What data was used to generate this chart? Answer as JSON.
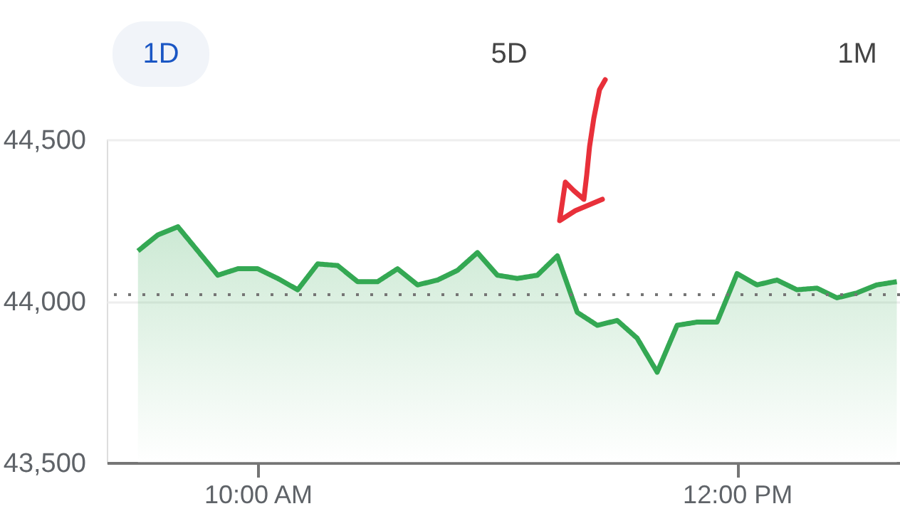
{
  "chart_data": {
    "type": "area",
    "annotations": [
      "1D",
      "5D",
      "1M"
    ],
    "x": [
      9.5,
      9.5833,
      9.6667,
      9.75,
      9.8333,
      9.9167,
      10.0,
      10.0833,
      10.1667,
      10.25,
      10.3333,
      10.4167,
      10.5,
      10.5833,
      10.6667,
      10.75,
      10.8333,
      10.9167,
      11.0,
      11.0833,
      11.1667,
      11.25,
      11.3333,
      11.4167,
      11.5,
      11.5833,
      11.6667,
      11.75,
      11.8333,
      11.9167,
      12.0,
      12.0833,
      12.1667,
      12.25,
      12.3333,
      12.4167,
      12.5,
      12.5833,
      12.6667
    ],
    "series": [
      {
        "color": "#34a853",
        "values": [
          44155,
          44205,
          44230,
          44155,
          44080,
          44100,
          44100,
          44070,
          44035,
          44115,
          44110,
          44060,
          44060,
          44100,
          44050,
          44065,
          44095,
          44150,
          44080,
          44070,
          44080,
          44140,
          43965,
          43925,
          43940,
          43885,
          43780,
          43925,
          43935,
          43935,
          44085,
          44050,
          44065,
          44035,
          44040,
          44010,
          44025,
          44050,
          44060
        ]
      }
    ],
    "xlim": [
      9.37,
      12.68
    ],
    "xticks": [
      {
        "value": 10,
        "label": "10:00 AM"
      },
      {
        "value": 12,
        "label": "12:00 PM"
      }
    ],
    "ylim": [
      43500,
      44500
    ],
    "yticks": [
      {
        "value": 43500,
        "label": "43,500"
      },
      {
        "value": 44000,
        "label": "44,000"
      },
      {
        "value": 44500,
        "label": "44,500"
      }
    ],
    "ref_lines": [
      {
        "axis": "y",
        "value": 44020,
        "color": "#757575",
        "line_style": "dotted"
      }
    ],
    "grid": "y",
    "marker": "none",
    "line_style": "solid"
  }
}
